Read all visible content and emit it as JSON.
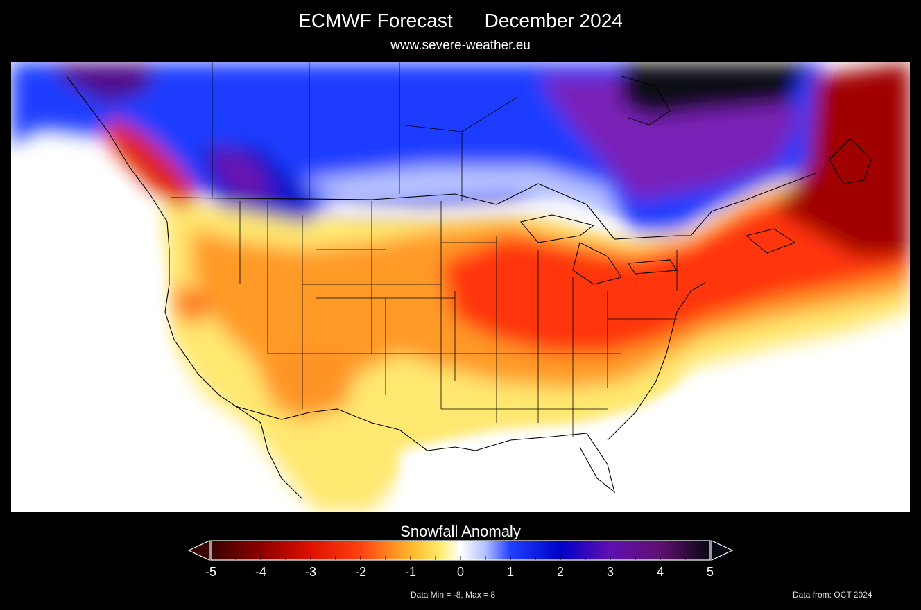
{
  "header": {
    "title": "ECMWF Forecast",
    "date": "December 2024",
    "website": "www.severe-weather.eu"
  },
  "map": {
    "region": "North America",
    "variable": "snowfall anomaly",
    "highlights": [
      {
        "area": "Central/Southern Canada & Northern Rockies",
        "sign": "positive"
      },
      {
        "area": "Hudson Bay region",
        "sign": "strongly positive"
      },
      {
        "area": "Great Lakes, Ohio Valley & US Northeast",
        "sign": "negative"
      },
      {
        "area": "Atlantic Canada & Labrador coast",
        "sign": "strongly negative"
      },
      {
        "area": "Pacific Northwest coast",
        "sign": "negative"
      },
      {
        "area": "Southern US & Mexico",
        "sign": "near zero to slightly negative"
      }
    ]
  },
  "legend": {
    "title": "Snowfall Anomaly",
    "min": -5,
    "max": 5,
    "ticks": [
      "-5",
      "-4",
      "-3",
      "-2",
      "-1",
      "0",
      "1",
      "2",
      "3",
      "4",
      "5"
    ],
    "colors": {
      "neg5": "#3a0000",
      "neg4": "#8b0000",
      "neg3": "#e01000",
      "neg2": "#ff4010",
      "neg15": "#ff8a20",
      "neg1": "#ffc030",
      "neg05": "#ffec70",
      "zero": "#ffffff",
      "pos05": "#b0c0ff",
      "pos1": "#2040ff",
      "pos2": "#0000c8",
      "pos3": "#6010b0",
      "pos4": "#601070",
      "pos5": "#060612"
    }
  },
  "footer": {
    "data_range": "Data Min = -8, Max = 8",
    "source": "Data from: OCT 2024"
  }
}
